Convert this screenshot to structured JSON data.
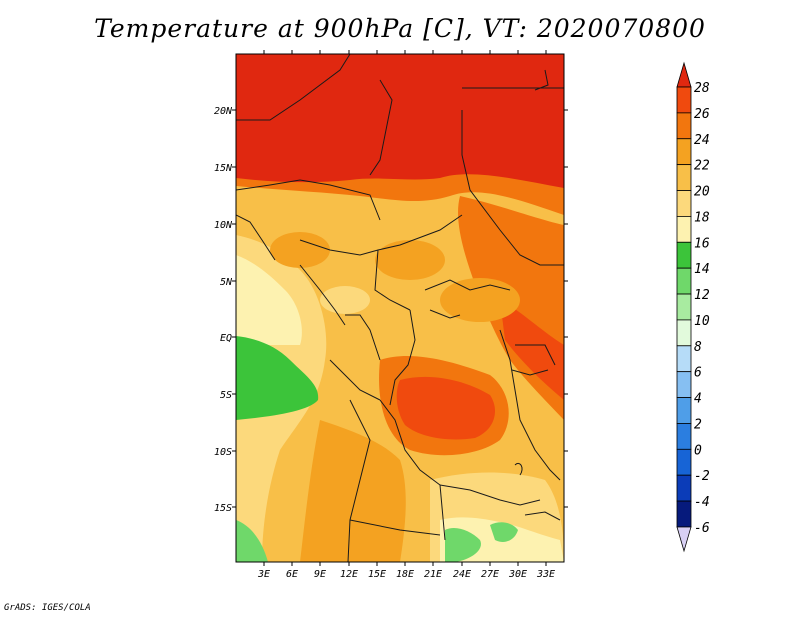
{
  "title": "Temperature at 900hPa [C], VT: 2020070800",
  "footer": "GrADS: IGES/COLA",
  "map": {
    "lat_labels": [
      "20N",
      "15N",
      "10N",
      "5N",
      "EQ",
      "5S",
      "10S",
      "15S"
    ],
    "lon_labels": [
      "3E",
      "6E",
      "9E",
      "12E",
      "15E",
      "18E",
      "21E",
      "24E",
      "27E",
      "30E",
      "33E"
    ]
  },
  "colorbar": {
    "levels": [
      "28",
      "26",
      "24",
      "22",
      "20",
      "18",
      "16",
      "14",
      "12",
      "10",
      "8",
      "6",
      "4",
      "2",
      "0",
      "-2",
      "-4",
      "-6"
    ],
    "colors": {
      "above_28": "#e02810",
      "26_28": "#f04a0e",
      "24_26": "#f2760e",
      "22_24": "#f4a221",
      "20_22": "#f8bf48",
      "18_20": "#fcd97c",
      "16_18": "#fdf2b0",
      "14_16": "#3cc43a",
      "12_14": "#6fd86a",
      "10_12": "#a8eba0",
      "8_10": "#e2fadc",
      "6_8": "#b6dcf8",
      "4_6": "#86bff2",
      "2_4": "#4f9ee8",
      "0_2": "#2b7ee0",
      "m2_0": "#1764d6",
      "m4_m2": "#0b3cb8",
      "m6_m4": "#061a7c",
      "below_m6": "#d8d0f4"
    }
  }
}
